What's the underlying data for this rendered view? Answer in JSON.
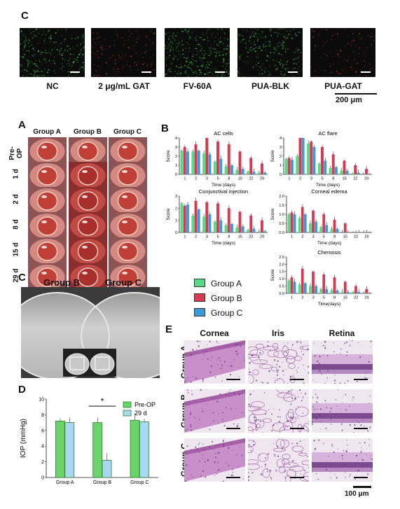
{
  "panel_c_top": {
    "letter": "C",
    "images": [
      {
        "label": "NC",
        "tone": "#37c43a",
        "density": 260
      },
      {
        "label": "2 μg/mL GAT",
        "tone": "#c23030",
        "density": 120
      },
      {
        "label": "FV-60A",
        "tone": "#37c43a",
        "density": 320
      },
      {
        "label": "PUA-BLK",
        "tone": "#37c43a",
        "density": 240
      },
      {
        "label": "PUA-GAT",
        "tone": "#c23030",
        "density": 110
      }
    ],
    "scale": "200 μm"
  },
  "panel_a": {
    "letter": "A",
    "columns": [
      "Group A",
      "Group B",
      "Group C"
    ],
    "rows": [
      "Pre-OP",
      "1 d",
      "2 d",
      "8 d",
      "15 d",
      "29 d"
    ]
  },
  "panel_b": {
    "letter": "B",
    "legend": [
      {
        "name": "Group A",
        "color": "#58d98a"
      },
      {
        "name": "Group B",
        "color": "#d43a52"
      },
      {
        "name": "Group C",
        "color": "#3d9ad9"
      }
    ]
  },
  "chart_data": [
    {
      "type": "bar",
      "title": "AC cells",
      "xlabel": "Time (days)",
      "ylabel": "Score",
      "categories": [
        "1",
        "2",
        "3",
        "5",
        "8",
        "15",
        "22",
        "29"
      ],
      "ylim": [
        0,
        4
      ],
      "yticks": [
        0,
        1,
        2,
        3,
        4
      ],
      "series": [
        {
          "name": "Group A",
          "values": [
            2.6,
            2.5,
            2.3,
            1.4,
            0.9,
            0.5,
            0.3,
            0.2
          ]
        },
        {
          "name": "Group B",
          "values": [
            3.0,
            3.3,
            4.0,
            3.6,
            3.3,
            2.5,
            1.8,
            1.2
          ]
        },
        {
          "name": "Group C",
          "values": [
            2.5,
            2.6,
            2.2,
            1.7,
            1.0,
            0.6,
            0.3,
            0.2
          ]
        }
      ]
    },
    {
      "type": "bar",
      "title": "AC flare",
      "xlabel": "Time (days)",
      "ylabel": "Score",
      "categories": [
        "1",
        "2",
        "3",
        "5",
        "8",
        "15",
        "22",
        "29"
      ],
      "ylim": [
        0,
        4
      ],
      "yticks": [
        0,
        1,
        2,
        3,
        4
      ],
      "series": [
        {
          "name": "Group A",
          "values": [
            1.7,
            2.0,
            3.4,
            1.2,
            0.7,
            0.4,
            0.1,
            0.0
          ]
        },
        {
          "name": "Group B",
          "values": [
            1.8,
            4.0,
            3.6,
            3.0,
            2.2,
            1.5,
            1.0,
            0.6
          ]
        },
        {
          "name": "Group C",
          "values": [
            1.6,
            4.0,
            3.0,
            1.5,
            0.8,
            0.4,
            0.2,
            0.0
          ]
        }
      ]
    },
    {
      "type": "bar",
      "title": "Conjunctival injection",
      "xlabel": "Time (days)",
      "ylabel": "Score",
      "categories": [
        "1",
        "2",
        "3",
        "5",
        "8",
        "15",
        "22",
        "29"
      ],
      "ylim": [
        0,
        3
      ],
      "yticks": [
        0,
        1,
        2,
        3
      ],
      "series": [
        {
          "name": "Group A",
          "values": [
            2.4,
            1.4,
            1.3,
            0.9,
            0.6,
            0.4,
            0.2,
            0.1
          ]
        },
        {
          "name": "Group B",
          "values": [
            2.2,
            2.6,
            2.5,
            2.4,
            2.0,
            1.7,
            1.4,
            1.0
          ]
        },
        {
          "name": "Group C",
          "values": [
            2.3,
            1.9,
            1.5,
            1.0,
            0.7,
            0.5,
            0.3,
            0.1
          ]
        }
      ]
    },
    {
      "type": "bar",
      "title": "Corneal edema",
      "xlabel": "Time (days)",
      "ylabel": "Score",
      "categories": [
        "1",
        "2",
        "3",
        "5",
        "8",
        "15",
        "22",
        "29"
      ],
      "ylim": [
        0,
        2.0
      ],
      "yticks": [
        0.0,
        0.5,
        1.0,
        1.5,
        2.0
      ],
      "series": [
        {
          "name": "Group A",
          "values": [
            1.0,
            0.8,
            0.5,
            0.3,
            0.2,
            0.0,
            0.0,
            0.0
          ]
        },
        {
          "name": "Group B",
          "values": [
            1.1,
            1.4,
            1.2,
            1.0,
            0.7,
            0.5,
            0.0,
            0.0
          ]
        },
        {
          "name": "Group C",
          "values": [
            1.0,
            1.0,
            0.6,
            0.4,
            0.2,
            0.0,
            0.0,
            0.0
          ]
        }
      ]
    },
    {
      "type": "bar",
      "title": "Chemosis",
      "xlabel": "Time(days)",
      "ylabel": "Score",
      "categories": [
        "1",
        "2",
        "3",
        "5",
        "8",
        "15",
        "22",
        "29"
      ],
      "ylim": [
        0,
        2.5
      ],
      "yticks": [
        0.0,
        0.5,
        1.0,
        1.5,
        2.0,
        2.5
      ],
      "series": [
        {
          "name": "Group A",
          "values": [
            0.9,
            0.6,
            0.5,
            0.3,
            0.2,
            0.1,
            0.1,
            0.0
          ]
        },
        {
          "name": "Group B",
          "values": [
            1.1,
            1.7,
            1.5,
            1.3,
            1.1,
            0.8,
            0.5,
            0.3
          ]
        },
        {
          "name": "Group C",
          "values": [
            0.8,
            0.7,
            0.5,
            0.3,
            0.2,
            0.1,
            0.1,
            0.0
          ]
        }
      ]
    },
    {
      "type": "bar",
      "ylabel": "IOP (mmHg)",
      "xlabel": "",
      "categories": [
        "Group A",
        "Group B",
        "Group C"
      ],
      "ylim": [
        0,
        10
      ],
      "yticks": [
        0,
        2,
        4,
        6,
        8,
        10
      ],
      "series": [
        {
          "name": "Pre-OP",
          "values": [
            7.2,
            7.0,
            7.3
          ]
        },
        {
          "name": "29 d",
          "values": [
            7.0,
            2.2,
            7.1
          ]
        }
      ],
      "annotation": "*"
    }
  ],
  "panel_c_mid": {
    "letter": "C",
    "labels": [
      "Group B",
      "Group C"
    ]
  },
  "panel_d": {
    "letter": "D",
    "legend": [
      {
        "name": "Pre-OP",
        "color": "#6ad46a"
      },
      {
        "name": "29 d",
        "color": "#a9d8f2"
      }
    ]
  },
  "panel_e": {
    "letter": "E",
    "columns": [
      "Cornea",
      "Iris",
      "Retina"
    ],
    "rows": [
      "Group A",
      "Group B",
      "Group C"
    ],
    "scale": "100 μm"
  }
}
